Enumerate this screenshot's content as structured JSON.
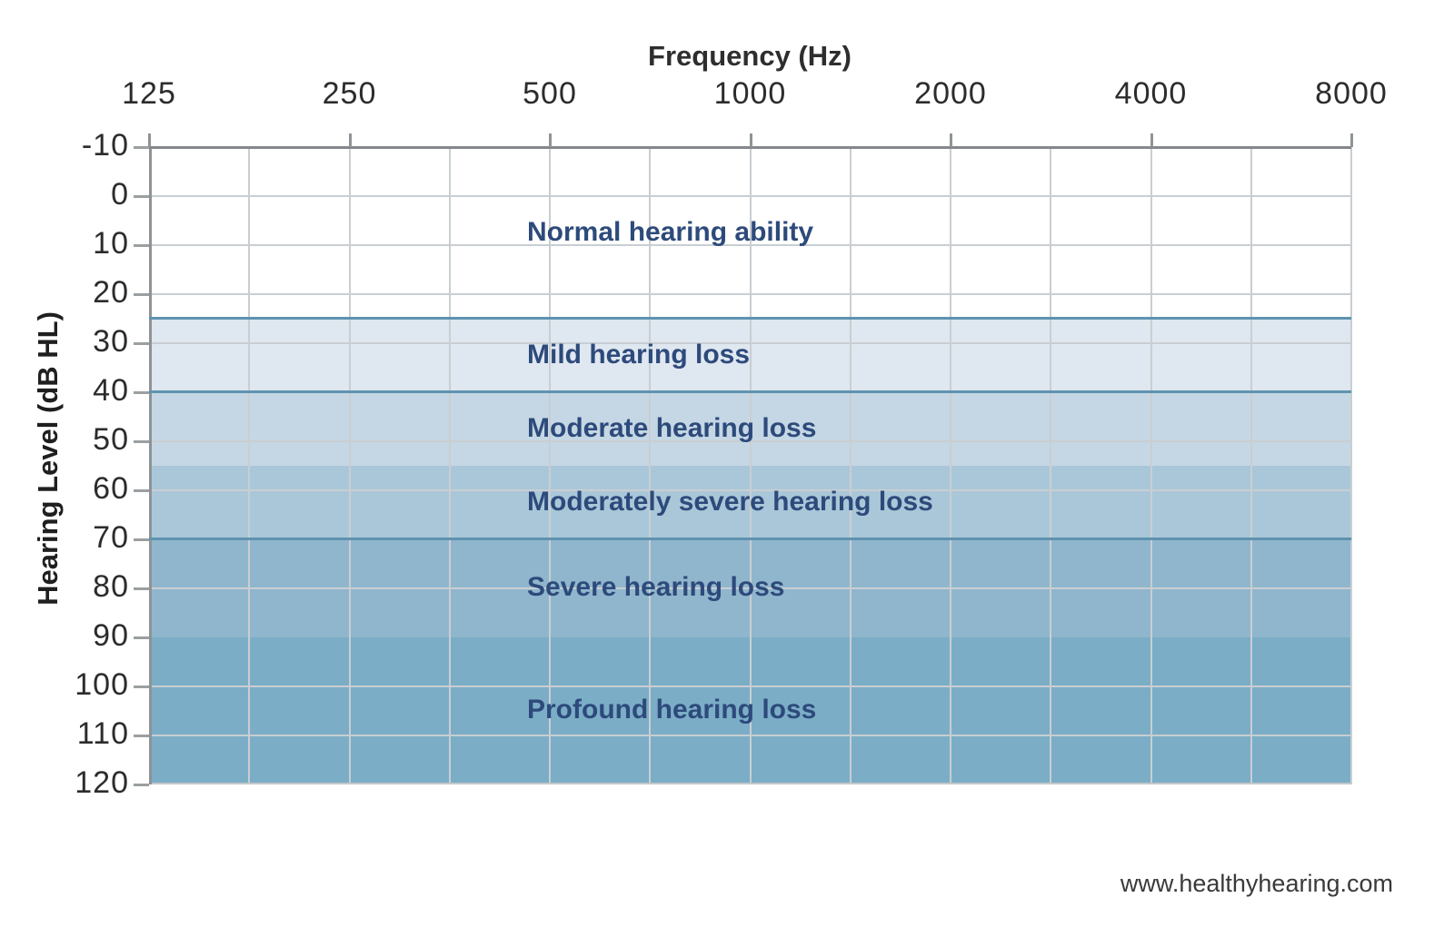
{
  "chart_data": {
    "type": "area",
    "title": "Frequency (Hz)",
    "xlabel": "Frequency (Hz)",
    "ylabel": "Hearing Level (dB HL)",
    "x_ticks": [
      "125",
      "250",
      "500",
      "1000",
      "2000",
      "4000",
      "8000"
    ],
    "y_ticks": [
      "-10",
      "0",
      "10",
      "20",
      "30",
      "40",
      "50",
      "60",
      "70",
      "80",
      "90",
      "100",
      "110",
      "120"
    ],
    "xlim_hz": [
      125,
      8000
    ],
    "ylim_db": [
      -10,
      120
    ],
    "y_axis_direction": "increases downward",
    "grid": true,
    "legend_position": "labels inside bands",
    "bands": [
      {
        "label": "Normal hearing ability",
        "db_min": -10,
        "db_max": 25,
        "color": "#ffffff"
      },
      {
        "label": "Mild hearing loss",
        "db_min": 25,
        "db_max": 40,
        "color": "#dfe7f0"
      },
      {
        "label": "Moderate hearing loss",
        "db_min": 40,
        "db_max": 55,
        "color": "#c5d7e4"
      },
      {
        "label": "Moderately severe hearing loss",
        "db_min": 55,
        "db_max": 70,
        "color": "#aac7d9"
      },
      {
        "label": "Severe hearing loss",
        "db_min": 70,
        "db_max": 90,
        "color": "#90b6cd"
      },
      {
        "label": "Profound hearing loss",
        "db_min": 90,
        "db_max": 120,
        "color": "#7badc7"
      }
    ],
    "boundary_lines_db": [
      25,
      40,
      70
    ],
    "boundary_line_color": "#5e93af",
    "band_label_color": "#2d4a7b"
  },
  "watermark": "www.healthyhearing.com"
}
